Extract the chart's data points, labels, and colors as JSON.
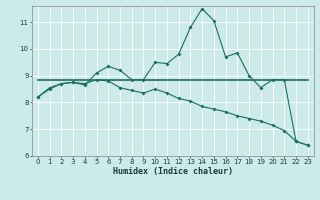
{
  "xlabel": "Humidex (Indice chaleur)",
  "bg_color": "#cceaea",
  "line_color": "#1a6e60",
  "xlim": [
    -0.5,
    23.5
  ],
  "ylim": [
    6,
    11.6
  ],
  "yticks": [
    6,
    7,
    8,
    9,
    10,
    11
  ],
  "xticks": [
    0,
    1,
    2,
    3,
    4,
    5,
    6,
    7,
    8,
    9,
    10,
    11,
    12,
    13,
    14,
    15,
    16,
    17,
    18,
    19,
    20,
    21,
    22,
    23
  ],
  "series1_x": [
    0,
    1,
    2,
    3,
    4,
    5,
    6,
    7,
    8,
    9,
    10,
    11,
    12,
    13,
    14,
    15,
    16,
    17,
    18,
    19,
    20,
    21,
    22,
    23
  ],
  "series1_y": [
    8.2,
    8.55,
    8.7,
    8.75,
    8.65,
    9.1,
    9.35,
    9.2,
    8.85,
    8.85,
    9.5,
    9.45,
    9.8,
    10.8,
    11.5,
    11.05,
    9.7,
    9.85,
    9.0,
    8.55,
    8.85,
    8.85,
    6.55,
    6.4
  ],
  "series2_x": [
    0,
    23
  ],
  "series2_y": [
    8.85,
    8.85
  ],
  "series3_x": [
    0,
    1,
    2,
    3,
    4,
    5,
    6,
    7,
    8,
    9,
    10,
    11,
    12,
    13,
    14,
    15,
    16,
    17,
    18,
    19,
    20,
    21,
    22,
    23
  ],
  "series3_y": [
    8.2,
    8.5,
    8.7,
    8.75,
    8.7,
    8.85,
    8.8,
    8.55,
    8.45,
    8.35,
    8.5,
    8.35,
    8.15,
    8.05,
    7.85,
    7.75,
    7.65,
    7.5,
    7.4,
    7.3,
    7.15,
    6.95,
    6.55,
    6.4
  ]
}
